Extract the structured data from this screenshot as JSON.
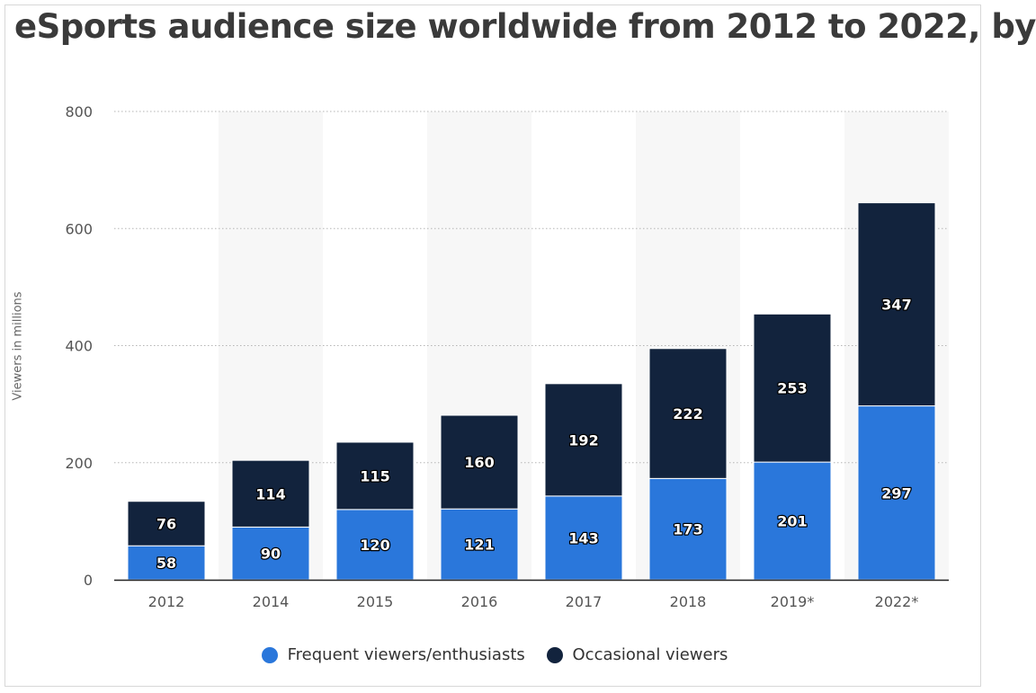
{
  "title": "eSports audience size worldwide from 2012 to 2022, by",
  "chart_data": {
    "type": "bar",
    "stacked": true,
    "title": "eSports audience size worldwide from 2012 to 2022, by",
    "xlabel": "",
    "ylabel": "Viewers in millions",
    "ylim": [
      0,
      800
    ],
    "yticks": [
      0,
      200,
      400,
      600,
      800
    ],
    "grid": true,
    "legend_position": "bottom",
    "categories": [
      "2012",
      "2014",
      "2015",
      "2016",
      "2017",
      "2018",
      "2019*",
      "2022*"
    ],
    "series": [
      {
        "name": "Frequent viewers/enthusiasts",
        "color": "#2a77db",
        "values": [
          58,
          90,
          120,
          121,
          143,
          173,
          201,
          297
        ]
      },
      {
        "name": "Occasional viewers",
        "color": "#12233d",
        "values": [
          76,
          114,
          115,
          160,
          192,
          222,
          253,
          347
        ]
      }
    ]
  }
}
